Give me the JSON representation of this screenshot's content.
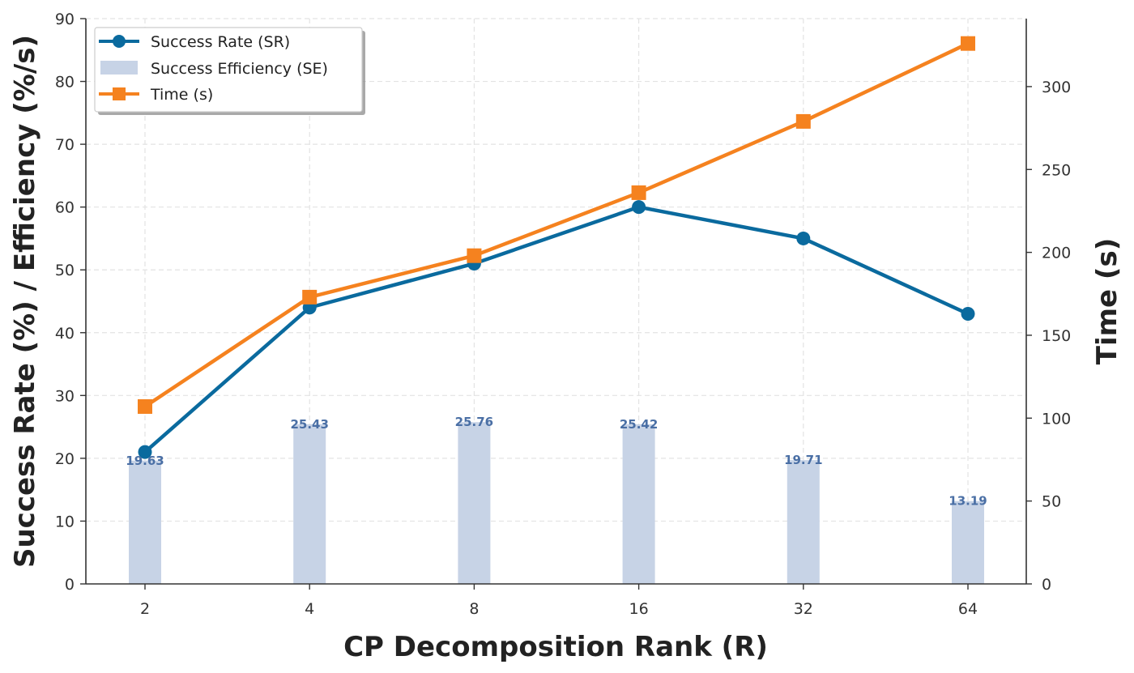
{
  "chart_data": {
    "type": "bar",
    "categories": [
      "2",
      "4",
      "8",
      "16",
      "32",
      "64"
    ],
    "series": [
      {
        "name": "Success Rate (SR)",
        "type": "line",
        "axis": "left",
        "values": [
          21,
          44,
          51,
          60,
          55,
          43
        ],
        "color": "#0a6a9e",
        "marker": "circle"
      },
      {
        "name": "Success Efficiency (SE)",
        "type": "bar",
        "axis": "left",
        "values": [
          19.63,
          25.43,
          25.76,
          25.42,
          19.71,
          13.19
        ],
        "color": "#c7d3e6",
        "label_color": "#4a6fa5",
        "labels": [
          "19.63",
          "25.43",
          "25.76",
          "25.42",
          "19.71",
          "13.19"
        ]
      },
      {
        "name": "Time (s)",
        "type": "line",
        "axis": "right",
        "values": [
          107,
          173,
          198,
          236,
          279,
          326
        ],
        "color": "#f5821f",
        "marker": "square"
      }
    ],
    "xlabel": "CP Decomposition Rank (R)",
    "ylabel": "Success Rate (%) / Efficiency (%/s)",
    "y2label": "Time (s)",
    "ylim": [
      0,
      90
    ],
    "y2lim": [
      0,
      341
    ],
    "yticks": [
      "0",
      "10",
      "20",
      "30",
      "40",
      "50",
      "60",
      "70",
      "80",
      "90"
    ],
    "y2ticks": [
      "0",
      "50",
      "100",
      "150",
      "200",
      "250",
      "300"
    ],
    "grid": true,
    "legend": "top-left"
  }
}
